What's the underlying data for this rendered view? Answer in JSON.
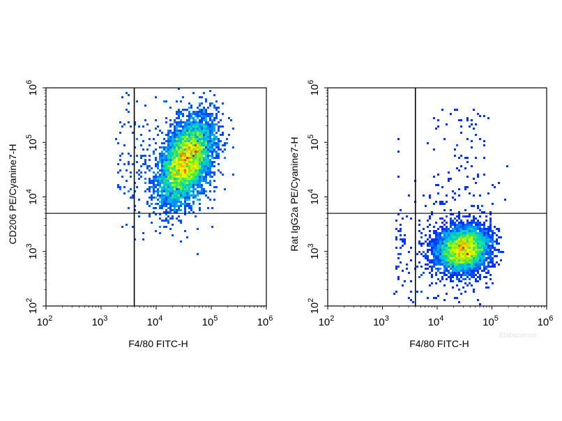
{
  "watermark": "Elabscience",
  "chart_data": [
    {
      "type": "scatter",
      "subtype": "flow-cytometry-density-dot-plot",
      "xlabel": "F4/80 FITC-H",
      "ylabel": "CD206 PE/Cyanine7-H",
      "xscale": "log",
      "yscale": "log",
      "xlim": [
        100,
        1000000
      ],
      "ylim": [
        100,
        1000000
      ],
      "tick_labels": [
        {
          "base": "10",
          "exp": "2"
        },
        {
          "base": "10",
          "exp": "3"
        },
        {
          "base": "10",
          "exp": "4"
        },
        {
          "base": "10",
          "exp": "5"
        },
        {
          "base": "10",
          "exp": "6"
        }
      ],
      "gate": {
        "x": 4000,
        "y": 5000
      },
      "population": {
        "center_x": 35000,
        "center_y": 45000,
        "spread_log_x": 0.24,
        "spread_log_y": 0.38,
        "correlation": 0.45
      },
      "colormap": [
        "#0000ff",
        "#00a0ff",
        "#00e0b0",
        "#80f000",
        "#ffff00",
        "#ff8000",
        "#ff0000"
      ]
    },
    {
      "type": "scatter",
      "subtype": "flow-cytometry-density-dot-plot",
      "xlabel": "F4/80  FITC-H",
      "ylabel": "Rat IgG2a PE/Cyanine7-H",
      "xscale": "log",
      "yscale": "log",
      "xlim": [
        100,
        1000000
      ],
      "ylim": [
        100,
        1000000
      ],
      "tick_labels": [
        {
          "base": "10",
          "exp": "2"
        },
        {
          "base": "10",
          "exp": "3"
        },
        {
          "base": "10",
          "exp": "4"
        },
        {
          "base": "10",
          "exp": "5"
        },
        {
          "base": "10",
          "exp": "6"
        }
      ],
      "gate": {
        "x": 4000,
        "y": 5000
      },
      "population": {
        "center_x": 30000,
        "center_y": 1100,
        "spread_log_x": 0.23,
        "spread_log_y": 0.2,
        "correlation": 0.1
      },
      "colormap": [
        "#0000ff",
        "#00a0ff",
        "#00e0b0",
        "#80f000",
        "#ffff00",
        "#ff8000",
        "#ff0000"
      ]
    }
  ]
}
